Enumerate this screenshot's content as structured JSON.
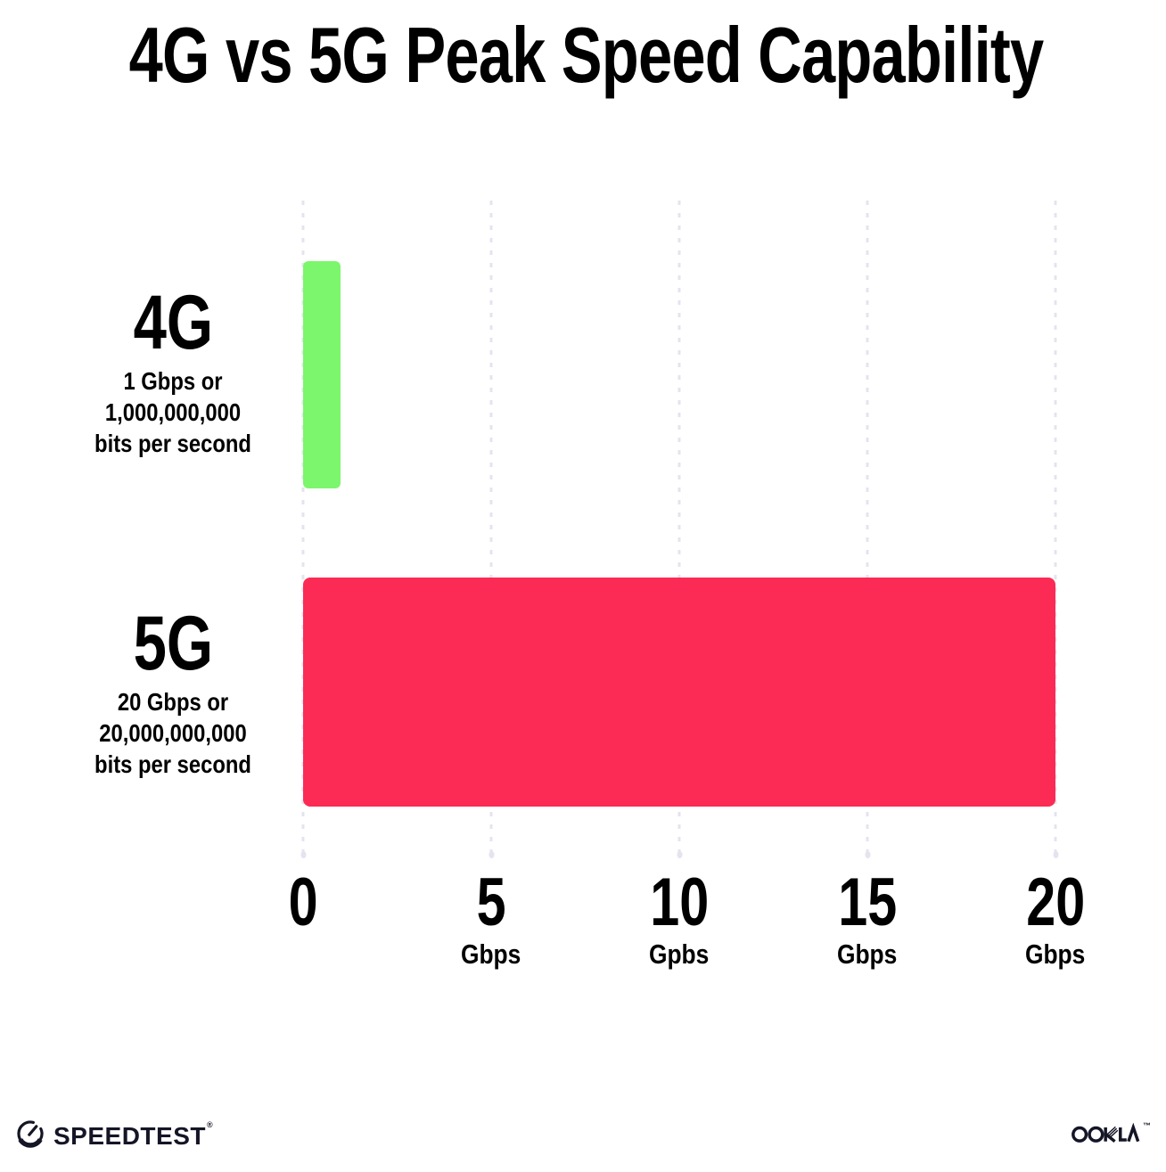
{
  "title": "4G vs 5G Peak Speed Capability",
  "chart_data": {
    "type": "bar",
    "orientation": "horizontal",
    "title": "4G vs 5G Peak Speed Capability",
    "xlim": [
      0,
      20
    ],
    "x_unit": "Gbps",
    "grid": "vertical dotted gridlines at 0,5,10,15,20",
    "legend": "none",
    "categories": [
      "4G",
      "5G"
    ],
    "values": [
      1,
      20
    ],
    "bar_colors": [
      "#7cf66c",
      "#fb2b55"
    ],
    "rows": [
      {
        "label": "4G",
        "sublabel_lines": [
          "1 Gbps or",
          "1,000,000,000",
          "bits per second"
        ],
        "value_gbps": 1
      },
      {
        "label": "5G",
        "sublabel_lines": [
          "20 Gbps or",
          "20,000,000,000",
          "bits per second"
        ],
        "value_gbps": 20
      }
    ],
    "x_ticks": [
      {
        "label": "0",
        "unit": ""
      },
      {
        "label": "5",
        "unit": "Gbps"
      },
      {
        "label": "10",
        "unit": "Gpbs"
      },
      {
        "label": "15",
        "unit": "Gbps"
      },
      {
        "label": "20",
        "unit": "Gbps"
      }
    ]
  },
  "footer": {
    "speedtest_label": "SPEEDTEST",
    "speedtest_trademark": "®",
    "ookla_label": "OOKLA",
    "ookla_trademark": "™"
  },
  "colors": {
    "bar_4g": "#7cf66c",
    "bar_5g": "#fb2b55",
    "gridline": "#e4e4f0",
    "text": "#000000",
    "logo": "#141526",
    "background": "#ffffff"
  }
}
